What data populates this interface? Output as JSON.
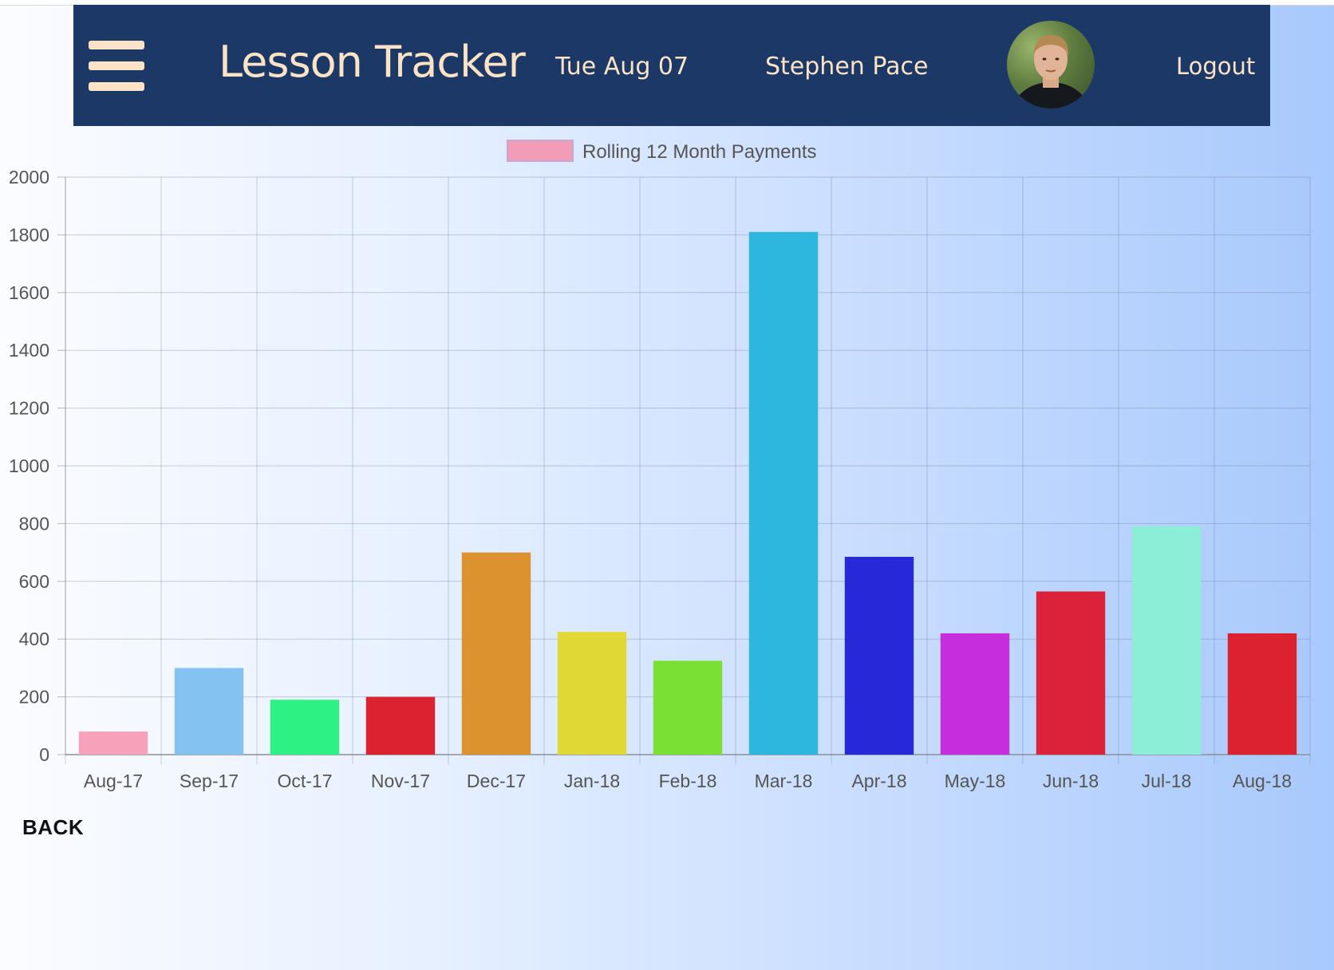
{
  "header": {
    "title": "Lesson Tracker",
    "date": "Tue Aug 07",
    "user_name": "Stephen Pace",
    "logout_label": "Logout",
    "menu_icon": "hamburger-menu-icon",
    "background_color": "#1b3866",
    "text_color": "#fde3c6"
  },
  "footer": {
    "back_label": "BACK"
  },
  "chart_data": {
    "type": "bar",
    "legend": [
      {
        "label": "Rolling 12 Month Payments",
        "color": "#f29cb7"
      }
    ],
    "legend_position": "top-center",
    "categories": [
      "Aug-17",
      "Sep-17",
      "Oct-17",
      "Nov-17",
      "Dec-17",
      "Jan-18",
      "Feb-18",
      "Mar-18",
      "Apr-18",
      "May-18",
      "Jun-18",
      "Jul-18",
      "Aug-18"
    ],
    "series": [
      {
        "name": "Rolling 12 Month Payments",
        "values": [
          80,
          300,
          190,
          200,
          700,
          425,
          325,
          1810,
          685,
          420,
          565,
          790,
          420
        ],
        "colors": [
          "#f7a1ba",
          "#84c3f1",
          "#2ef183",
          "#dc2230",
          "#dc922f",
          "#dfd835",
          "#7ae034",
          "#2db6de",
          "#2729d9",
          "#c62ddc",
          "#dc213a",
          "#8ceed5",
          "#dc2130"
        ]
      }
    ],
    "yticks": [
      0,
      200,
      400,
      600,
      800,
      1000,
      1200,
      1400,
      1600,
      1800,
      2000
    ],
    "ylim": [
      0,
      2000
    ],
    "grid": true,
    "title": "",
    "xlabel": "",
    "ylabel": ""
  }
}
